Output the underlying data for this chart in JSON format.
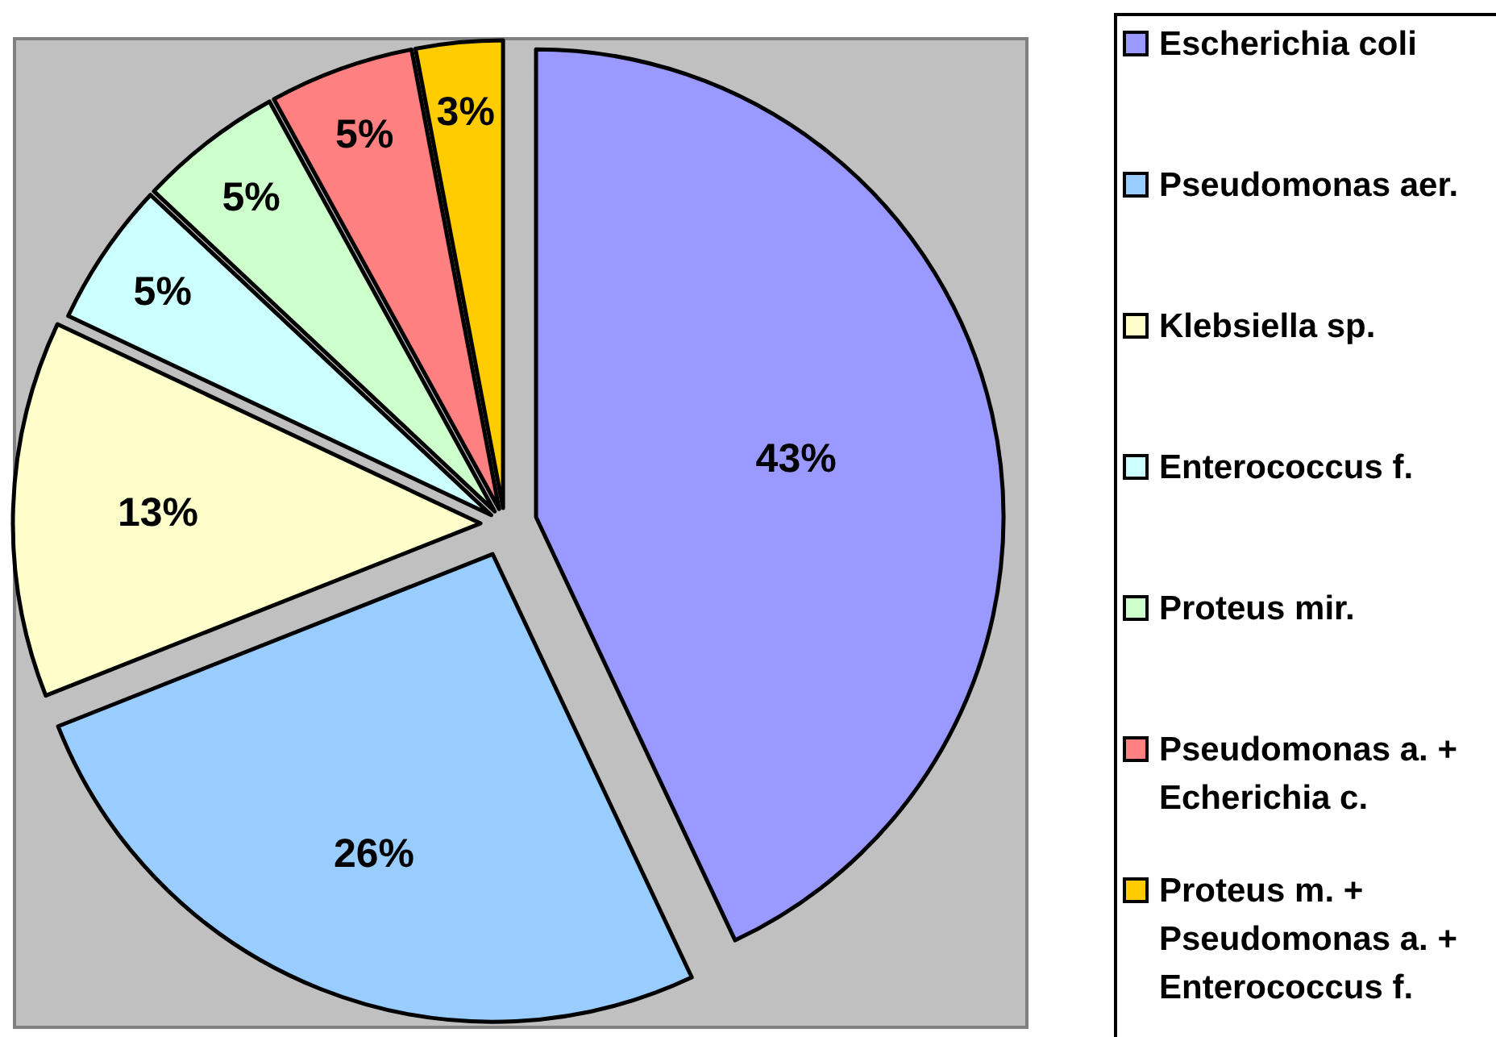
{
  "chart_data": {
    "type": "pie",
    "categories": [
      "Escherichia coli",
      "Pseudomonas aer.",
      "Klebsiella sp.",
      "Enterococcus f.",
      "Proteus mir.",
      "Pseudomonas a. + Echerichia c.",
      "Proteus m. + Pseudomonas a. + Enterococcus f."
    ],
    "values": [
      43,
      26,
      13,
      5,
      5,
      5,
      3
    ],
    "colors": [
      "#9999ff",
      "#99ccff",
      "#ffffcc",
      "#ccffff",
      "#ccffcc",
      "#ff8080",
      "#ffcc00"
    ],
    "value_labels": [
      "43%",
      "26%",
      "13%",
      "5%",
      "5%",
      "5%",
      "3%"
    ],
    "legend": "right"
  }
}
